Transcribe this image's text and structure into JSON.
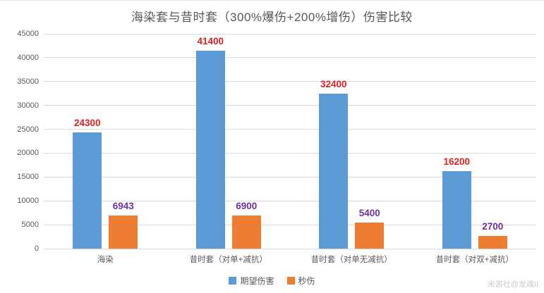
{
  "chart_data": {
    "type": "bar",
    "title": "海染套与昔时套（300%爆伤+200%增伤）伤害比较",
    "categories": [
      "海染",
      "昔时套（对单+减抗）",
      "昔时套（对单无减抗）",
      "昔时套（对双+减抗）"
    ],
    "series": [
      {
        "name": "期望伤害",
        "color": "#5B9BD5",
        "label_color": "#E02020",
        "values": [
          24300,
          41400,
          32400,
          16200
        ]
      },
      {
        "name": "秒伤",
        "color": "#ED7D31",
        "label_color": "#7030A0",
        "values": [
          6943,
          6900,
          5400,
          2700
        ]
      }
    ],
    "xlabel": "",
    "ylabel": "",
    "ylim": [
      0,
      45000
    ],
    "ytick_step": 5000,
    "grid": true,
    "legend_position": "bottom",
    "value_labels": true
  },
  "watermark": "米游社@龙魂II",
  "colors": {
    "gridline": "#D9D9D9",
    "axis_line": "#D6D6D6",
    "axis_text": "#595959",
    "title_text": "#595959",
    "watermark_text": "#C9C9C9",
    "background": "#FFFFFF"
  }
}
